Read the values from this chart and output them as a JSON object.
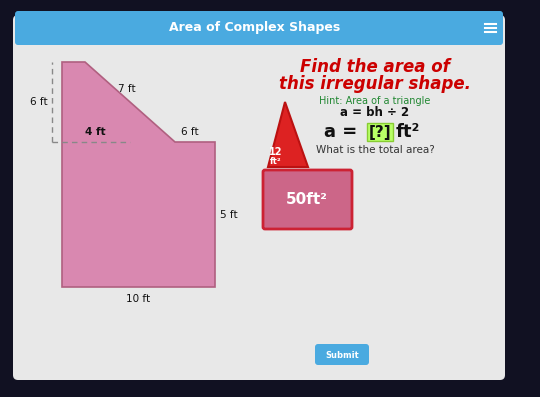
{
  "title": "Area of Complex Shapes",
  "bg_color": "#111122",
  "panel_color": "#e8e8e8",
  "header_color": "#4aaae0",
  "header_text": "Area of Complex Shapes",
  "shape_fill": "#d988b0",
  "shape_stroke": "#b06080",
  "tri_fill": "#dd2222",
  "tri_stroke": "#bb1111",
  "rect_fill": "#cc6688",
  "rect_stroke": "#cc2233",
  "main_line1": "Find the area of",
  "main_line2": "this irregular shape.",
  "hint_label": "Hint: Area of a triangle",
  "hint_formula": "a = bh ÷ 2",
  "formula_prefix": "a = ",
  "formula_bracket": "[?]",
  "formula_suffix": " ft²",
  "question": "What is the total area?",
  "lbl_6ft_left": "6 ft",
  "lbl_7ft": "7 ft",
  "lbl_4ft": "4 ft",
  "lbl_6ft": "6 ft",
  "lbl_5ft": "5 ft",
  "lbl_10ft": "10 ft",
  "tri_area_line1": "12",
  "tri_area_line2": "ft²",
  "rect_area": "50ft²",
  "submit_text": "Submit",
  "submit_color": "#4aaae0",
  "green_box_color": "#b8ff66",
  "green_box_edge": "#88cc33",
  "hint_color": "#228833"
}
